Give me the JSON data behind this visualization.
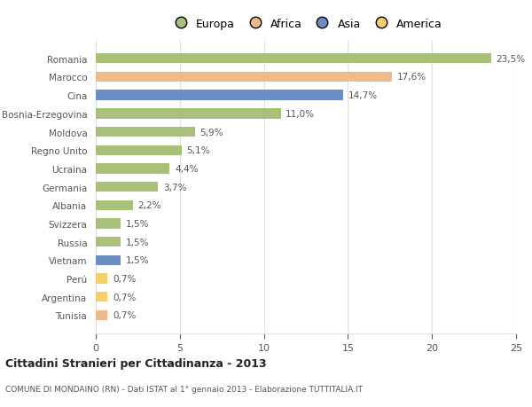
{
  "countries": [
    "Romania",
    "Marocco",
    "Cina",
    "Bosnia-Erzegovina",
    "Moldova",
    "Regno Unito",
    "Ucraina",
    "Germania",
    "Albania",
    "Svizzera",
    "Russia",
    "Vietnam",
    "Perú",
    "Argentina",
    "Tunisia"
  ],
  "values": [
    23.5,
    17.6,
    14.7,
    11.0,
    5.9,
    5.1,
    4.4,
    3.7,
    2.2,
    1.5,
    1.5,
    1.5,
    0.7,
    0.7,
    0.7
  ],
  "labels": [
    "23,5%",
    "17,6%",
    "14,7%",
    "11,0%",
    "5,9%",
    "5,1%",
    "4,4%",
    "3,7%",
    "2,2%",
    "1,5%",
    "1,5%",
    "1,5%",
    "0,7%",
    "0,7%",
    "0,7%"
  ],
  "colors": [
    "#a8c07a",
    "#f0b98a",
    "#6b8dc4",
    "#a8c07a",
    "#a8c07a",
    "#a8c07a",
    "#a8c07a",
    "#a8c07a",
    "#a8c07a",
    "#a8c07a",
    "#a8c07a",
    "#6b8dc4",
    "#f5d06a",
    "#f5d06a",
    "#f0b98a"
  ],
  "legend_labels": [
    "Europa",
    "Africa",
    "Asia",
    "America"
  ],
  "legend_colors": [
    "#a8c07a",
    "#f0b98a",
    "#6b8dc4",
    "#f5d06a"
  ],
  "title": "Cittadini Stranieri per Cittadinanza - 2013",
  "subtitle": "COMUNE DI MONDAINO (RN) - Dati ISTAT al 1° gennaio 2013 - Elaborazione TUTTITALIA.IT",
  "xlim": [
    0,
    25
  ],
  "xticks": [
    0,
    5,
    10,
    15,
    20,
    25
  ],
  "bar_height": 0.55,
  "background_color": "#ffffff",
  "grid_color": "#e0e0e0",
  "text_color": "#555555",
  "label_fontsize": 7.5,
  "ytick_fontsize": 7.5,
  "xtick_fontsize": 8
}
